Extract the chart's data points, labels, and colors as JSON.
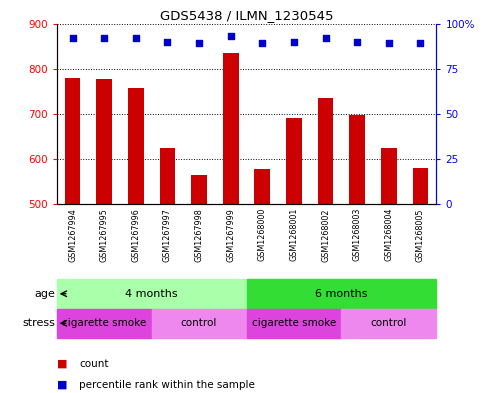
{
  "title": "GDS5438 / ILMN_1230545",
  "samples": [
    "GSM1267994",
    "GSM1267995",
    "GSM1267996",
    "GSM1267997",
    "GSM1267998",
    "GSM1267999",
    "GSM1268000",
    "GSM1268001",
    "GSM1268002",
    "GSM1268003",
    "GSM1268004",
    "GSM1268005"
  ],
  "counts": [
    780,
    778,
    758,
    625,
    565,
    835,
    578,
    690,
    735,
    698,
    625,
    580
  ],
  "percentiles": [
    92,
    92,
    92,
    90,
    89,
    93,
    89,
    90,
    92,
    90,
    89,
    89
  ],
  "ylim_left": [
    500,
    900
  ],
  "ylim_right": [
    0,
    100
  ],
  "yticks_left": [
    500,
    600,
    700,
    800,
    900
  ],
  "yticks_right": [
    0,
    25,
    50,
    75,
    100
  ],
  "bar_color": "#cc0000",
  "scatter_color": "#0000cc",
  "bar_width": 0.5,
  "age_groups": [
    {
      "label": "4 months",
      "start": 0,
      "end": 5,
      "color": "#aaffaa"
    },
    {
      "label": "6 months",
      "start": 6,
      "end": 11,
      "color": "#33dd33"
    }
  ],
  "stress_segments": [
    {
      "label": "cigarette smoke",
      "start": 0,
      "end": 2,
      "color": "#dd44dd"
    },
    {
      "label": "control",
      "start": 3,
      "end": 5,
      "color": "#ee88ee"
    },
    {
      "label": "cigarette smoke",
      "start": 6,
      "end": 8,
      "color": "#dd44dd"
    },
    {
      "label": "control",
      "start": 9,
      "end": 11,
      "color": "#ee88ee"
    }
  ],
  "sample_bg_color": "#cccccc",
  "legend_items": [
    {
      "color": "#cc0000",
      "label": "count"
    },
    {
      "color": "#0000cc",
      "label": "percentile rank within the sample"
    }
  ]
}
